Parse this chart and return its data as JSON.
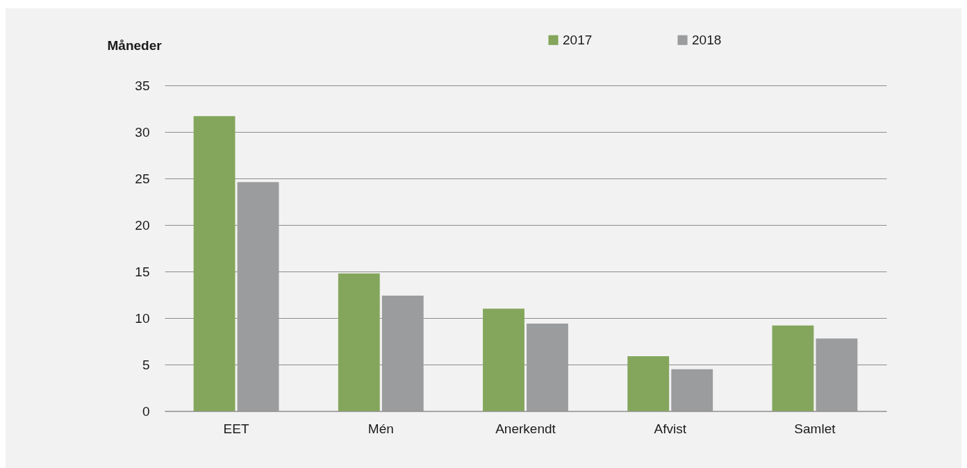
{
  "chart_data": {
    "type": "bar",
    "ylabel": "Måneder",
    "categories": [
      "EET",
      "Mén",
      "Anerkendt",
      "Afvist",
      "Samlet"
    ],
    "series": [
      {
        "name": "2017",
        "color": "#84a65c",
        "values": [
          31.7,
          14.8,
          11.0,
          5.9,
          9.2
        ]
      },
      {
        "name": "2018",
        "color": "#9a9c9d",
        "values": [
          24.6,
          12.4,
          9.4,
          4.5,
          7.8
        ]
      }
    ],
    "ylim": [
      0,
      35
    ],
    "yticks": [
      0,
      5,
      10,
      15,
      20,
      25,
      30,
      35
    ],
    "grid": "y",
    "legend": "top"
  }
}
